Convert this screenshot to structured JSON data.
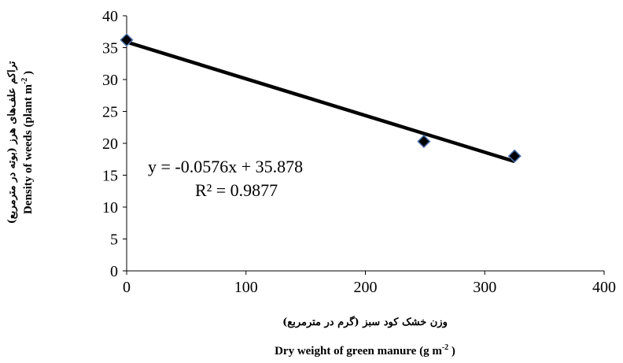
{
  "chart_data": {
    "type": "scatter",
    "x": [
      0,
      249,
      325
    ],
    "y": [
      36.2,
      20.3,
      18.0
    ],
    "xlim": [
      0,
      400
    ],
    "ylim": [
      0,
      40
    ],
    "x_ticks": [
      "0",
      "100",
      "200",
      "300",
      "400"
    ],
    "y_ticks": [
      "0",
      "5",
      "10",
      "15",
      "20",
      "25",
      "30",
      "35",
      "40"
    ],
    "xlabel_fa": "وزن خشک کود سبز (گرم در مترمربع)",
    "xlabel_en": "Dry weight of green manure (g m",
    "xlabel_en_sup": "-2",
    "xlabel_en_end": " )",
    "ylabel_fa": "تراکم علف‌های هرز (بوته در مترمربع)",
    "ylabel_en": "Density of weeds (plant  m",
    "ylabel_en_sup": "-2",
    "ylabel_en_end": " )",
    "trendline": {
      "slope": -0.0576,
      "intercept": 35.878,
      "x_range": [
        0,
        325
      ]
    },
    "equation": "y = -0.0576x + 35.878",
    "r_squared": "R² = 0.9877",
    "grid": false,
    "marker_color": "#000000",
    "marker_edge_color": "#4a6fa5",
    "line_color": "#000000"
  }
}
